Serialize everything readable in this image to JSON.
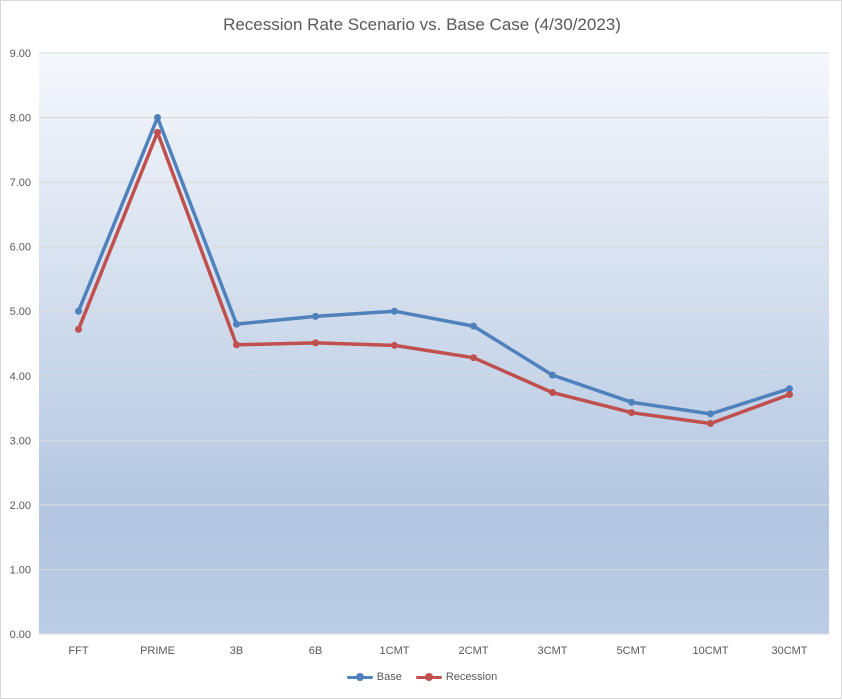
{
  "chart_data": {
    "type": "line",
    "title": "Recession Rate Scenario vs. Base Case (4/30/2023)",
    "xlabel": "",
    "ylabel": "",
    "categories": [
      "FFT",
      "PRIME",
      "3B",
      "6B",
      "1CMT",
      "2CMT",
      "3CMT",
      "5CMT",
      "10CMT",
      "30CMT"
    ],
    "ylim": [
      0,
      9
    ],
    "yticks": [
      "0.00",
      "1.00",
      "2.00",
      "3.00",
      "4.00",
      "5.00",
      "6.00",
      "7.00",
      "8.00",
      "9.00"
    ],
    "grid": true,
    "legend_position": "bottom",
    "series": [
      {
        "name": "Base",
        "color": "#4f81bd",
        "values": [
          5.0,
          8.0,
          4.8,
          4.92,
          5.0,
          4.77,
          4.01,
          3.59,
          3.41,
          3.8
        ]
      },
      {
        "name": "Recession",
        "color": "#c0504d",
        "values": [
          4.72,
          7.77,
          4.48,
          4.51,
          4.47,
          4.28,
          3.74,
          3.43,
          3.26,
          3.71
        ]
      }
    ]
  }
}
